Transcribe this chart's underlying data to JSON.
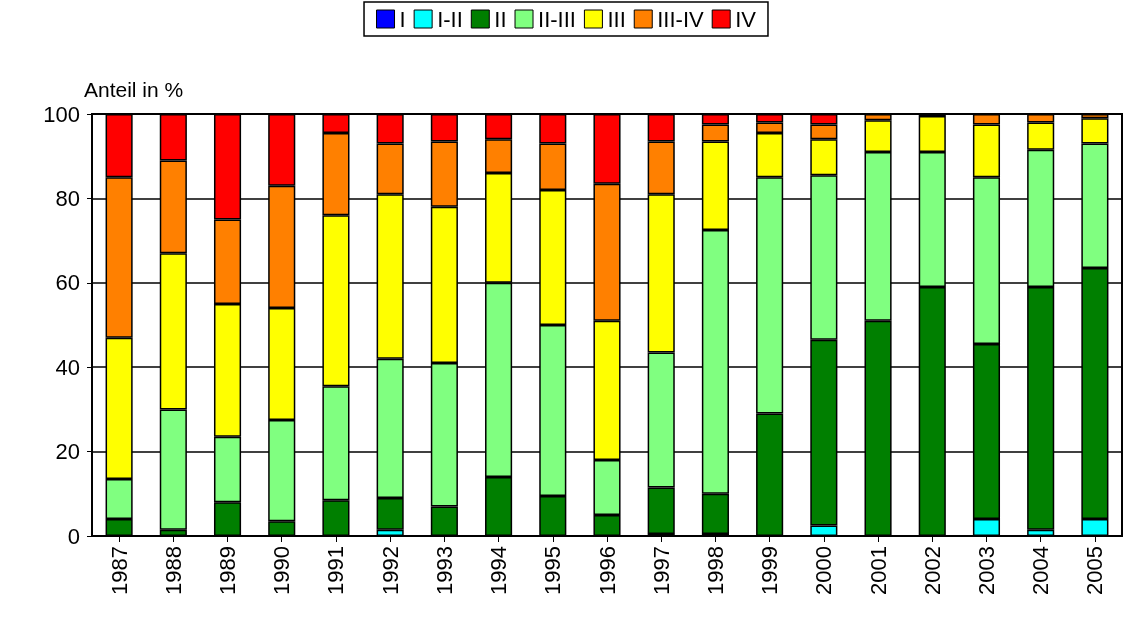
{
  "chart_data": {
    "type": "bar",
    "stacked": true,
    "ylabel": "Anteil in %",
    "categories": [
      "1987",
      "1988",
      "1989",
      "1990",
      "1991",
      "1992",
      "1993",
      "1994",
      "1995",
      "1996",
      "1997",
      "1998",
      "1999",
      "2000",
      "2001",
      "2002",
      "2003",
      "2004",
      "2005"
    ],
    "series": [
      {
        "name": "I",
        "color": "#0000ff",
        "values": [
          0,
          0,
          0,
          0,
          0,
          0,
          0,
          0,
          0,
          0,
          0,
          0,
          0,
          0,
          0,
          0,
          0,
          0,
          0
        ]
      },
      {
        "name": "I-II",
        "color": "#00ffff",
        "values": [
          0,
          0,
          0,
          0,
          0,
          1.5,
          0,
          0,
          0,
          0,
          0.5,
          0.5,
          0,
          2.5,
          0,
          0,
          4,
          1.5,
          4
        ]
      },
      {
        "name": "II",
        "color": "#007f00",
        "values": [
          4,
          1.5,
          8,
          3.5,
          8.5,
          7.5,
          7,
          14,
          9.5,
          5,
          11,
          9.5,
          29,
          44,
          51,
          59,
          41.5,
          57.5,
          59.5
        ]
      },
      {
        "name": "II-III",
        "color": "#80ff80",
        "values": [
          9.5,
          28.5,
          15.5,
          24,
          27,
          33,
          34,
          46,
          40.5,
          13,
          32,
          62.5,
          56,
          39,
          40,
          32,
          39.5,
          32.5,
          29.5
        ]
      },
      {
        "name": "III",
        "color": "#ffff00",
        "values": [
          33.5,
          37,
          31.5,
          26.5,
          40.5,
          39,
          37,
          26,
          32,
          33,
          37.5,
          21,
          10.5,
          8.5,
          7.5,
          8.5,
          12.5,
          6.5,
          6
        ]
      },
      {
        "name": "III-IV",
        "color": "#ff8000",
        "values": [
          38,
          22,
          20,
          29,
          19.5,
          12,
          15.5,
          8,
          11,
          32.5,
          12.5,
          4,
          2.5,
          3.5,
          1.5,
          0.5,
          2.5,
          2,
          1
        ]
      },
      {
        "name": "IV",
        "color": "#ff0000",
        "values": [
          15,
          11,
          25,
          17,
          4.5,
          7,
          6.5,
          6,
          7,
          16.5,
          6.5,
          2.5,
          2,
          2.5,
          0,
          0,
          0,
          0,
          0
        ]
      }
    ],
    "ylim": [
      0,
      100
    ],
    "yticks": [
      0,
      20,
      40,
      60,
      80,
      100
    ],
    "grid": "y",
    "legend": "top"
  }
}
